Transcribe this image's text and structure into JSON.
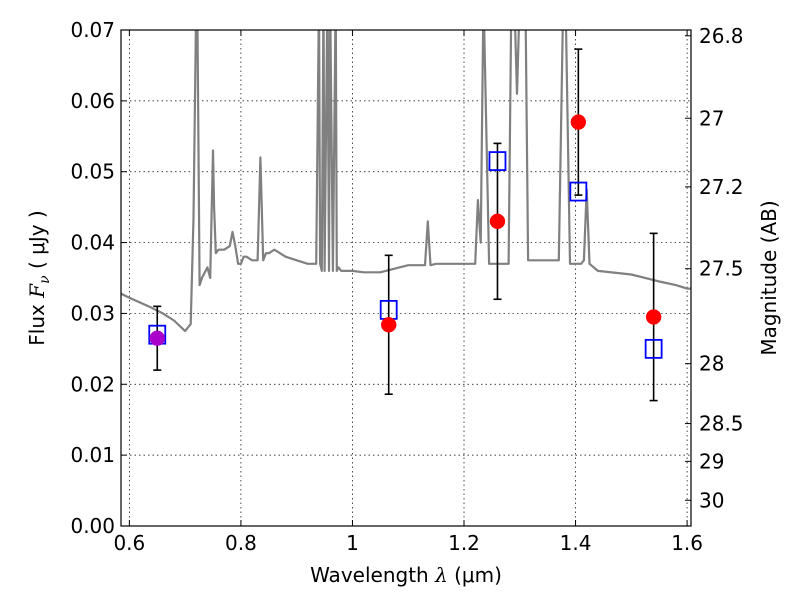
{
  "chart_data": {
    "type": "scatter",
    "title": "",
    "xlabel_prefix": "Wavelength ",
    "xlabel_symbol": "λ",
    "xlabel_unit": " (μm)",
    "ylabel_prefix": "Flux ",
    "ylabel_symbol": "F",
    "ylabel_sub": "ν",
    "ylabel_unit": " ( μJy )",
    "y2label": "Magnitude (AB)",
    "xlim": [
      0.585,
      1.607
    ],
    "ylim": [
      0.0,
      0.07
    ],
    "xticks": [
      0.6,
      0.8,
      1.0,
      1.2,
      1.4,
      1.6
    ],
    "xtick_labels": [
      "0.6",
      "0.8",
      "1",
      "1.2",
      "1.4",
      "1.6"
    ],
    "yticks": [
      0.0,
      0.01,
      0.02,
      0.03,
      0.04,
      0.05,
      0.06,
      0.07
    ],
    "ytick_labels": [
      "0.00",
      "0.01",
      "0.02",
      "0.03",
      "0.04",
      "0.05",
      "0.06",
      "0.07"
    ],
    "y2ticks": [
      26.8,
      27,
      27.2,
      27.5,
      28,
      28.5,
      29,
      30
    ],
    "y2tick_labels": [
      "26.8",
      "27",
      "27.2",
      "27.5",
      "28",
      "28.5",
      "29",
      "30"
    ],
    "grid": true,
    "colors": {
      "spectrum": "#808080",
      "observed": "#ff0000",
      "model": "#0000ff",
      "errorbar": "#000000",
      "overlap": "#aa00cc"
    },
    "series": [
      {
        "kind": "line",
        "x": [
          0.585,
          0.6,
          0.62,
          0.64,
          0.66,
          0.68,
          0.7,
          0.71,
          0.715,
          0.72,
          0.722,
          0.726,
          0.728,
          0.73,
          0.74,
          0.745,
          0.75,
          0.752,
          0.755,
          0.76,
          0.77,
          0.78,
          0.785,
          0.79,
          0.795,
          0.8,
          0.805,
          0.81,
          0.82,
          0.83,
          0.835,
          0.84,
          0.845,
          0.85,
          0.86,
          0.87,
          0.88,
          0.9,
          0.92,
          0.935,
          0.94,
          0.942,
          0.945,
          0.948,
          0.95,
          0.955,
          0.958,
          0.96,
          0.965,
          0.97,
          0.972,
          0.975,
          0.98,
          1.0,
          1.02,
          1.05,
          1.1,
          1.12,
          1.13,
          1.135,
          1.14,
          1.15,
          1.2,
          1.22,
          1.225,
          1.23,
          1.235,
          1.245,
          1.255,
          1.27,
          1.28,
          1.285,
          1.29,
          1.295,
          1.3,
          1.31,
          1.315,
          1.32,
          1.33,
          1.35,
          1.37,
          1.378,
          1.382,
          1.39,
          1.4,
          1.41,
          1.415,
          1.42,
          1.425,
          1.44,
          1.5,
          1.55,
          1.58,
          1.6,
          1.607
        ],
        "y": [
          0.0328,
          0.0322,
          0.0315,
          0.0308,
          0.03,
          0.029,
          0.0275,
          0.0285,
          0.0435,
          0.075,
          0.072,
          0.034,
          0.0345,
          0.035,
          0.0365,
          0.035,
          0.053,
          0.045,
          0.0385,
          0.039,
          0.039,
          0.0395,
          0.0415,
          0.0395,
          0.037,
          0.037,
          0.038,
          0.038,
          0.0375,
          0.0375,
          0.052,
          0.0375,
          0.0385,
          0.0385,
          0.039,
          0.0385,
          0.038,
          0.0375,
          0.037,
          0.037,
          0.075,
          0.037,
          0.036,
          0.075,
          0.036,
          0.075,
          0.036,
          0.075,
          0.036,
          0.075,
          0.036,
          0.0365,
          0.036,
          0.036,
          0.0358,
          0.0358,
          0.0368,
          0.0368,
          0.0368,
          0.043,
          0.0368,
          0.037,
          0.037,
          0.037,
          0.046,
          0.04,
          0.075,
          0.037,
          0.037,
          0.037,
          0.037,
          0.075,
          0.075,
          0.061,
          0.075,
          0.075,
          0.0375,
          0.0375,
          0.0375,
          0.0375,
          0.0375,
          0.075,
          0.075,
          0.037,
          0.037,
          0.037,
          0.0375,
          0.0475,
          0.037,
          0.036,
          0.0355,
          0.0345,
          0.034,
          0.0335,
          0.0335
        ]
      },
      {
        "kind": "points",
        "marker": "circle",
        "x": [
          0.65,
          1.065,
          1.26,
          1.405,
          1.54
        ],
        "y": [
          0.0265,
          0.0284,
          0.043,
          0.057,
          0.0295
        ],
        "yerr": [
          0.0045,
          0.0098,
          0.011,
          0.0103,
          0.0118
        ]
      },
      {
        "kind": "points",
        "marker": "square",
        "x": [
          0.65,
          1.065,
          1.26,
          1.405,
          1.54
        ],
        "y": [
          0.027,
          0.0305,
          0.0515,
          0.0472,
          0.025
        ]
      }
    ]
  }
}
